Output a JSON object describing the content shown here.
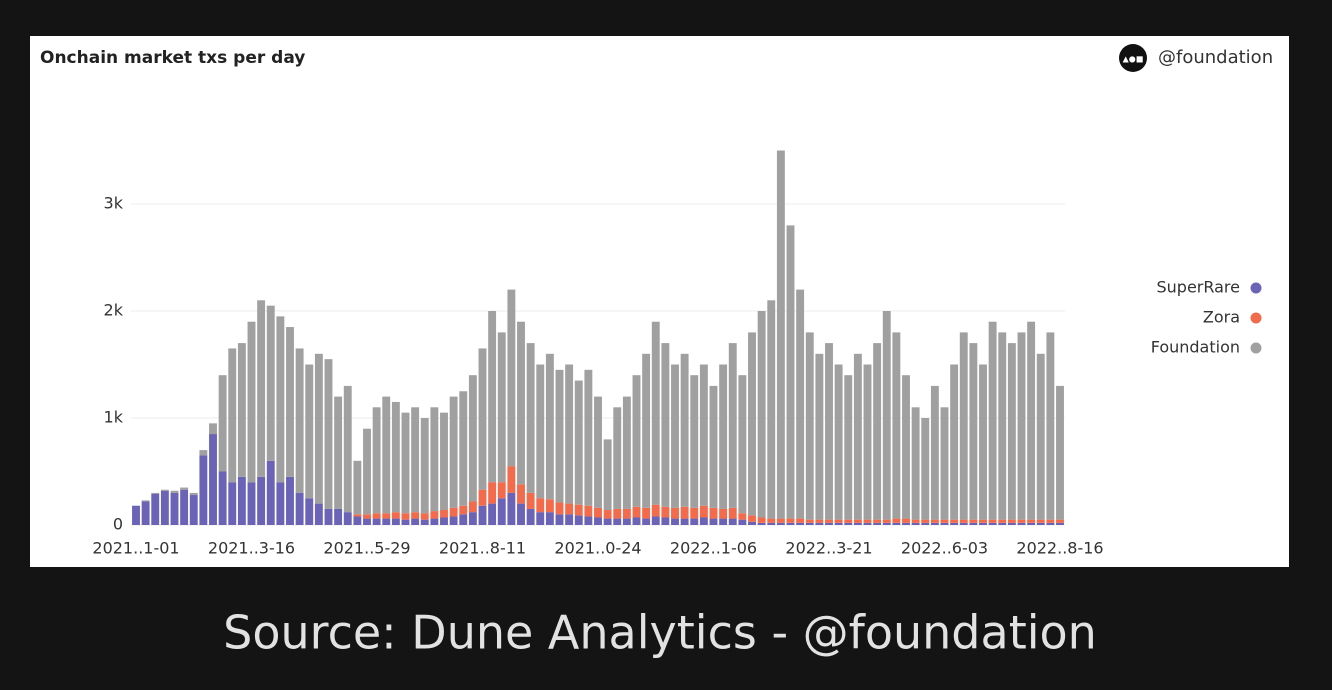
{
  "chart_data": {
    "type": "stacked_bar",
    "title": "Onchain market txs per day",
    "watermark": "@foundation",
    "source": "Source: Dune Analytics - @foundation",
    "categories": [
      "2021..1-01",
      null,
      null,
      null,
      null,
      null,
      null,
      null,
      null,
      null,
      null,
      null,
      "2021..3-16",
      null,
      null,
      null,
      null,
      null,
      null,
      null,
      null,
      null,
      null,
      null,
      "2021..5-29",
      null,
      null,
      null,
      null,
      null,
      null,
      null,
      null,
      null,
      null,
      null,
      "2021..8-11",
      null,
      null,
      null,
      null,
      null,
      null,
      null,
      null,
      null,
      null,
      null,
      "2021..0-24",
      null,
      null,
      null,
      null,
      null,
      null,
      null,
      null,
      null,
      null,
      null,
      "2022..1-06",
      null,
      null,
      null,
      null,
      null,
      null,
      null,
      null,
      null,
      null,
      null,
      "2022..3-21",
      null,
      null,
      null,
      null,
      null,
      null,
      null,
      null,
      null,
      null,
      null,
      "2022..6-03",
      null,
      null,
      null,
      null,
      null,
      null,
      null,
      null,
      null,
      null,
      null,
      "2022..8-16"
    ],
    "series": [
      {
        "name": "SuperRare",
        "color": "#6b63b5",
        "values": [
          180,
          220,
          290,
          320,
          300,
          330,
          280,
          650,
          850,
          500,
          400,
          450,
          400,
          450,
          600,
          400,
          450,
          300,
          250,
          200,
          150,
          150,
          120,
          80,
          60,
          60,
          60,
          60,
          50,
          60,
          50,
          60,
          70,
          80,
          100,
          120,
          180,
          200,
          250,
          300,
          200,
          150,
          120,
          120,
          100,
          100,
          90,
          80,
          70,
          60,
          60,
          60,
          70,
          60,
          80,
          70,
          60,
          60,
          60,
          70,
          60,
          60,
          60,
          50,
          30,
          20,
          20,
          20,
          20,
          20,
          20,
          20,
          20,
          20,
          20,
          20,
          20,
          20,
          20,
          20,
          20,
          20,
          20,
          20,
          20,
          20,
          20,
          20,
          20,
          20,
          20,
          20,
          20,
          20,
          20,
          20,
          20
        ]
      },
      {
        "name": "Zora",
        "color": "#f26b4c",
        "values": [
          0,
          0,
          0,
          0,
          0,
          0,
          0,
          0,
          0,
          0,
          0,
          0,
          0,
          0,
          0,
          0,
          0,
          0,
          0,
          0,
          0,
          0,
          0,
          20,
          40,
          50,
          50,
          60,
          60,
          60,
          60,
          70,
          70,
          80,
          80,
          100,
          150,
          200,
          150,
          250,
          180,
          150,
          130,
          120,
          110,
          100,
          100,
          100,
          90,
          80,
          90,
          90,
          100,
          100,
          110,
          100,
          100,
          110,
          100,
          110,
          100,
          90,
          100,
          60,
          60,
          50,
          40,
          40,
          40,
          40,
          30,
          30,
          30,
          30,
          30,
          30,
          30,
          30,
          30,
          40,
          40,
          30,
          30,
          30,
          30,
          30,
          30,
          30,
          30,
          30,
          30,
          30,
          30,
          30,
          30,
          30,
          30
        ]
      },
      {
        "name": "Foundation",
        "color": "#a0a0a0",
        "values": [
          0,
          10,
          10,
          10,
          20,
          20,
          20,
          50,
          100,
          900,
          1250,
          1250,
          1500,
          1650,
          1450,
          1550,
          1400,
          1350,
          1250,
          1400,
          1400,
          1050,
          1180,
          500,
          800,
          990,
          1090,
          1030,
          940,
          980,
          890,
          970,
          910,
          1040,
          1070,
          1180,
          1320,
          1600,
          1400,
          1650,
          1520,
          1400,
          1250,
          1360,
          1240,
          1300,
          1160,
          1270,
          1040,
          660,
          950,
          1050,
          1230,
          1440,
          1710,
          1530,
          1340,
          1430,
          1240,
          1320,
          1140,
          1350,
          1540,
          1290,
          1710,
          1930,
          2040,
          3440,
          2740,
          2140,
          1750,
          1550,
          1650,
          1450,
          1350,
          1550,
          1450,
          1650,
          1950,
          1740,
          1340,
          1050,
          950,
          1250,
          1050,
          1450,
          1750,
          1650,
          1450,
          1850,
          1750,
          1650,
          1750,
          1850,
          1550,
          1750,
          1250
        ]
      }
    ],
    "ylim": [
      0,
      4000
    ],
    "yticks": [
      0,
      {
        "value": 1000,
        "label": "1k"
      },
      {
        "value": 2000,
        "label": "2k"
      },
      {
        "value": 3000,
        "label": "3k"
      }
    ],
    "grid": true,
    "legend": "right"
  }
}
